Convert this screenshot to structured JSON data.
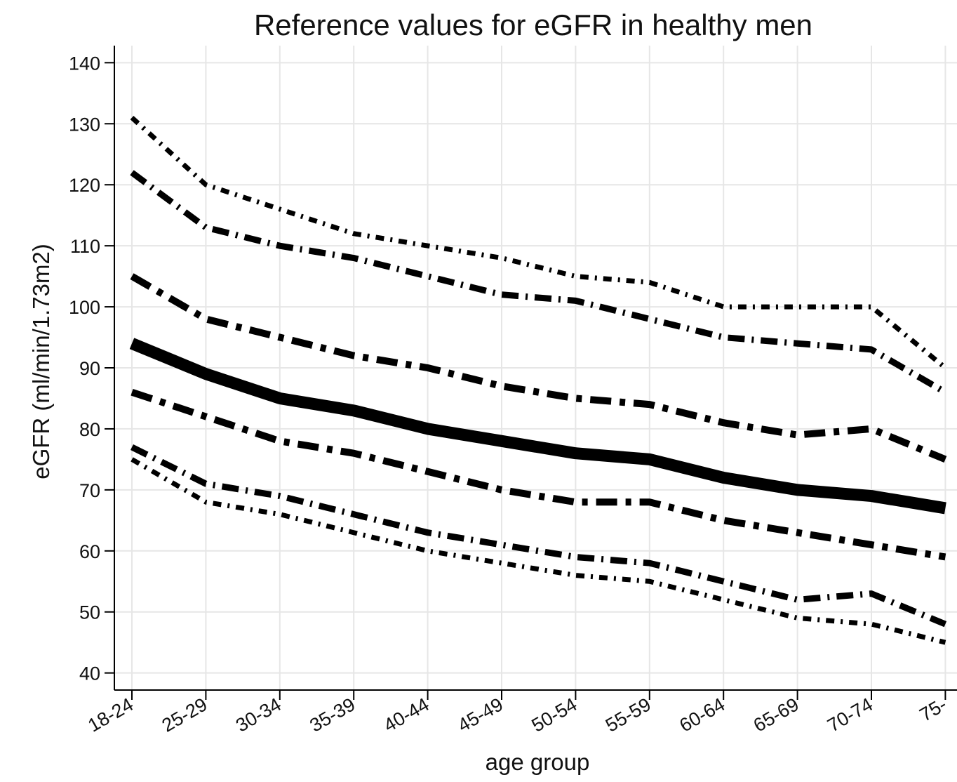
{
  "chart_data": {
    "type": "line",
    "title": "Reference values for eGFR in healthy men",
    "x_label": "age group",
    "y_label": "eGFR (ml/min/1.73m2)",
    "categories": [
      "18-24",
      "25-29",
      "30-34",
      "35-39",
      "40-44",
      "45-49",
      "50-54",
      "55-59",
      "60-64",
      "65-69",
      "70-74",
      "75-"
    ],
    "ylim": [
      37.2,
      142.8
    ],
    "yticks": [
      40,
      50,
      60,
      70,
      80,
      90,
      100,
      110,
      120,
      130,
      140
    ],
    "grid": true,
    "series": [
      {
        "color": "#000000",
        "width": 7,
        "dash": "12 9 3 9",
        "values": [
          131,
          120,
          116,
          112,
          110,
          108,
          105,
          104,
          100,
          100,
          100,
          90
        ]
      },
      {
        "color": "#000000",
        "width": 9,
        "dash": "24 10 3 10",
        "values": [
          122,
          113,
          110,
          108,
          105,
          102,
          101,
          98,
          95,
          94,
          93,
          86
        ]
      },
      {
        "color": "#000000",
        "width": 10,
        "dash": "30 12 8 12",
        "values": [
          105,
          98,
          95,
          92,
          90,
          87,
          85,
          84,
          81,
          79,
          80,
          75
        ]
      },
      {
        "color": "#000000",
        "width": 17,
        "dash": "none",
        "values": [
          94,
          89,
          85,
          83,
          80,
          78,
          76,
          75,
          72,
          70,
          69,
          67
        ]
      },
      {
        "color": "#000000",
        "width": 10,
        "dash": "30 12 8 12",
        "values": [
          86,
          82,
          78,
          76,
          73,
          70,
          68,
          68,
          65,
          63,
          61,
          59
        ]
      },
      {
        "color": "#000000",
        "width": 9,
        "dash": "24 10 3 10",
        "values": [
          77,
          71,
          69,
          66,
          63,
          61,
          59,
          58,
          55,
          52,
          53,
          48
        ]
      },
      {
        "color": "#000000",
        "width": 7,
        "dash": "12 9 3 9",
        "values": [
          75,
          68,
          66,
          63,
          60,
          58,
          56,
          55,
          52,
          49,
          48,
          45
        ]
      }
    ]
  }
}
